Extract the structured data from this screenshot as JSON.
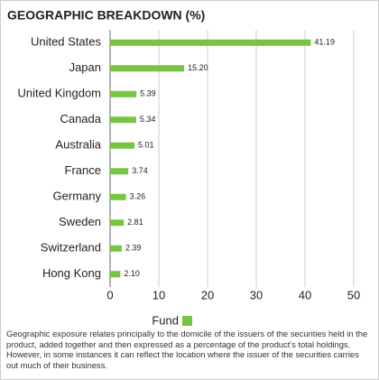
{
  "chart_data": {
    "type": "bar",
    "orientation": "horizontal",
    "title": "GEOGRAPHIC BREAKDOWN (%)",
    "categories": [
      "United States",
      "Japan",
      "United Kingdom",
      "Canada",
      "Australia",
      "France",
      "Germany",
      "Sweden",
      "Switzerland",
      "Hong Kong"
    ],
    "series": [
      {
        "name": "Fund",
        "color": "#76c442",
        "values": [
          41.19,
          15.2,
          5.39,
          5.34,
          5.01,
          3.74,
          3.26,
          2.81,
          2.39,
          2.1
        ],
        "value_labels": [
          "41.19",
          "15.20",
          "5.39",
          "5.34",
          "5.01",
          "3.74",
          "3.26",
          "2.81",
          "2.39",
          "2.10"
        ]
      }
    ],
    "xlim": [
      0,
      50
    ],
    "xticks": [
      0,
      10,
      20,
      30,
      40,
      50
    ],
    "grid": true,
    "legend": "bottom",
    "footnote": "Geographic exposure relates principally to the domicile of the issuers of the securities held in the product, added together and then expressed as a percentage of the product's total holdings. However, in some instances it can reflect the location where the issuer of the securities carries out much of their business."
  }
}
